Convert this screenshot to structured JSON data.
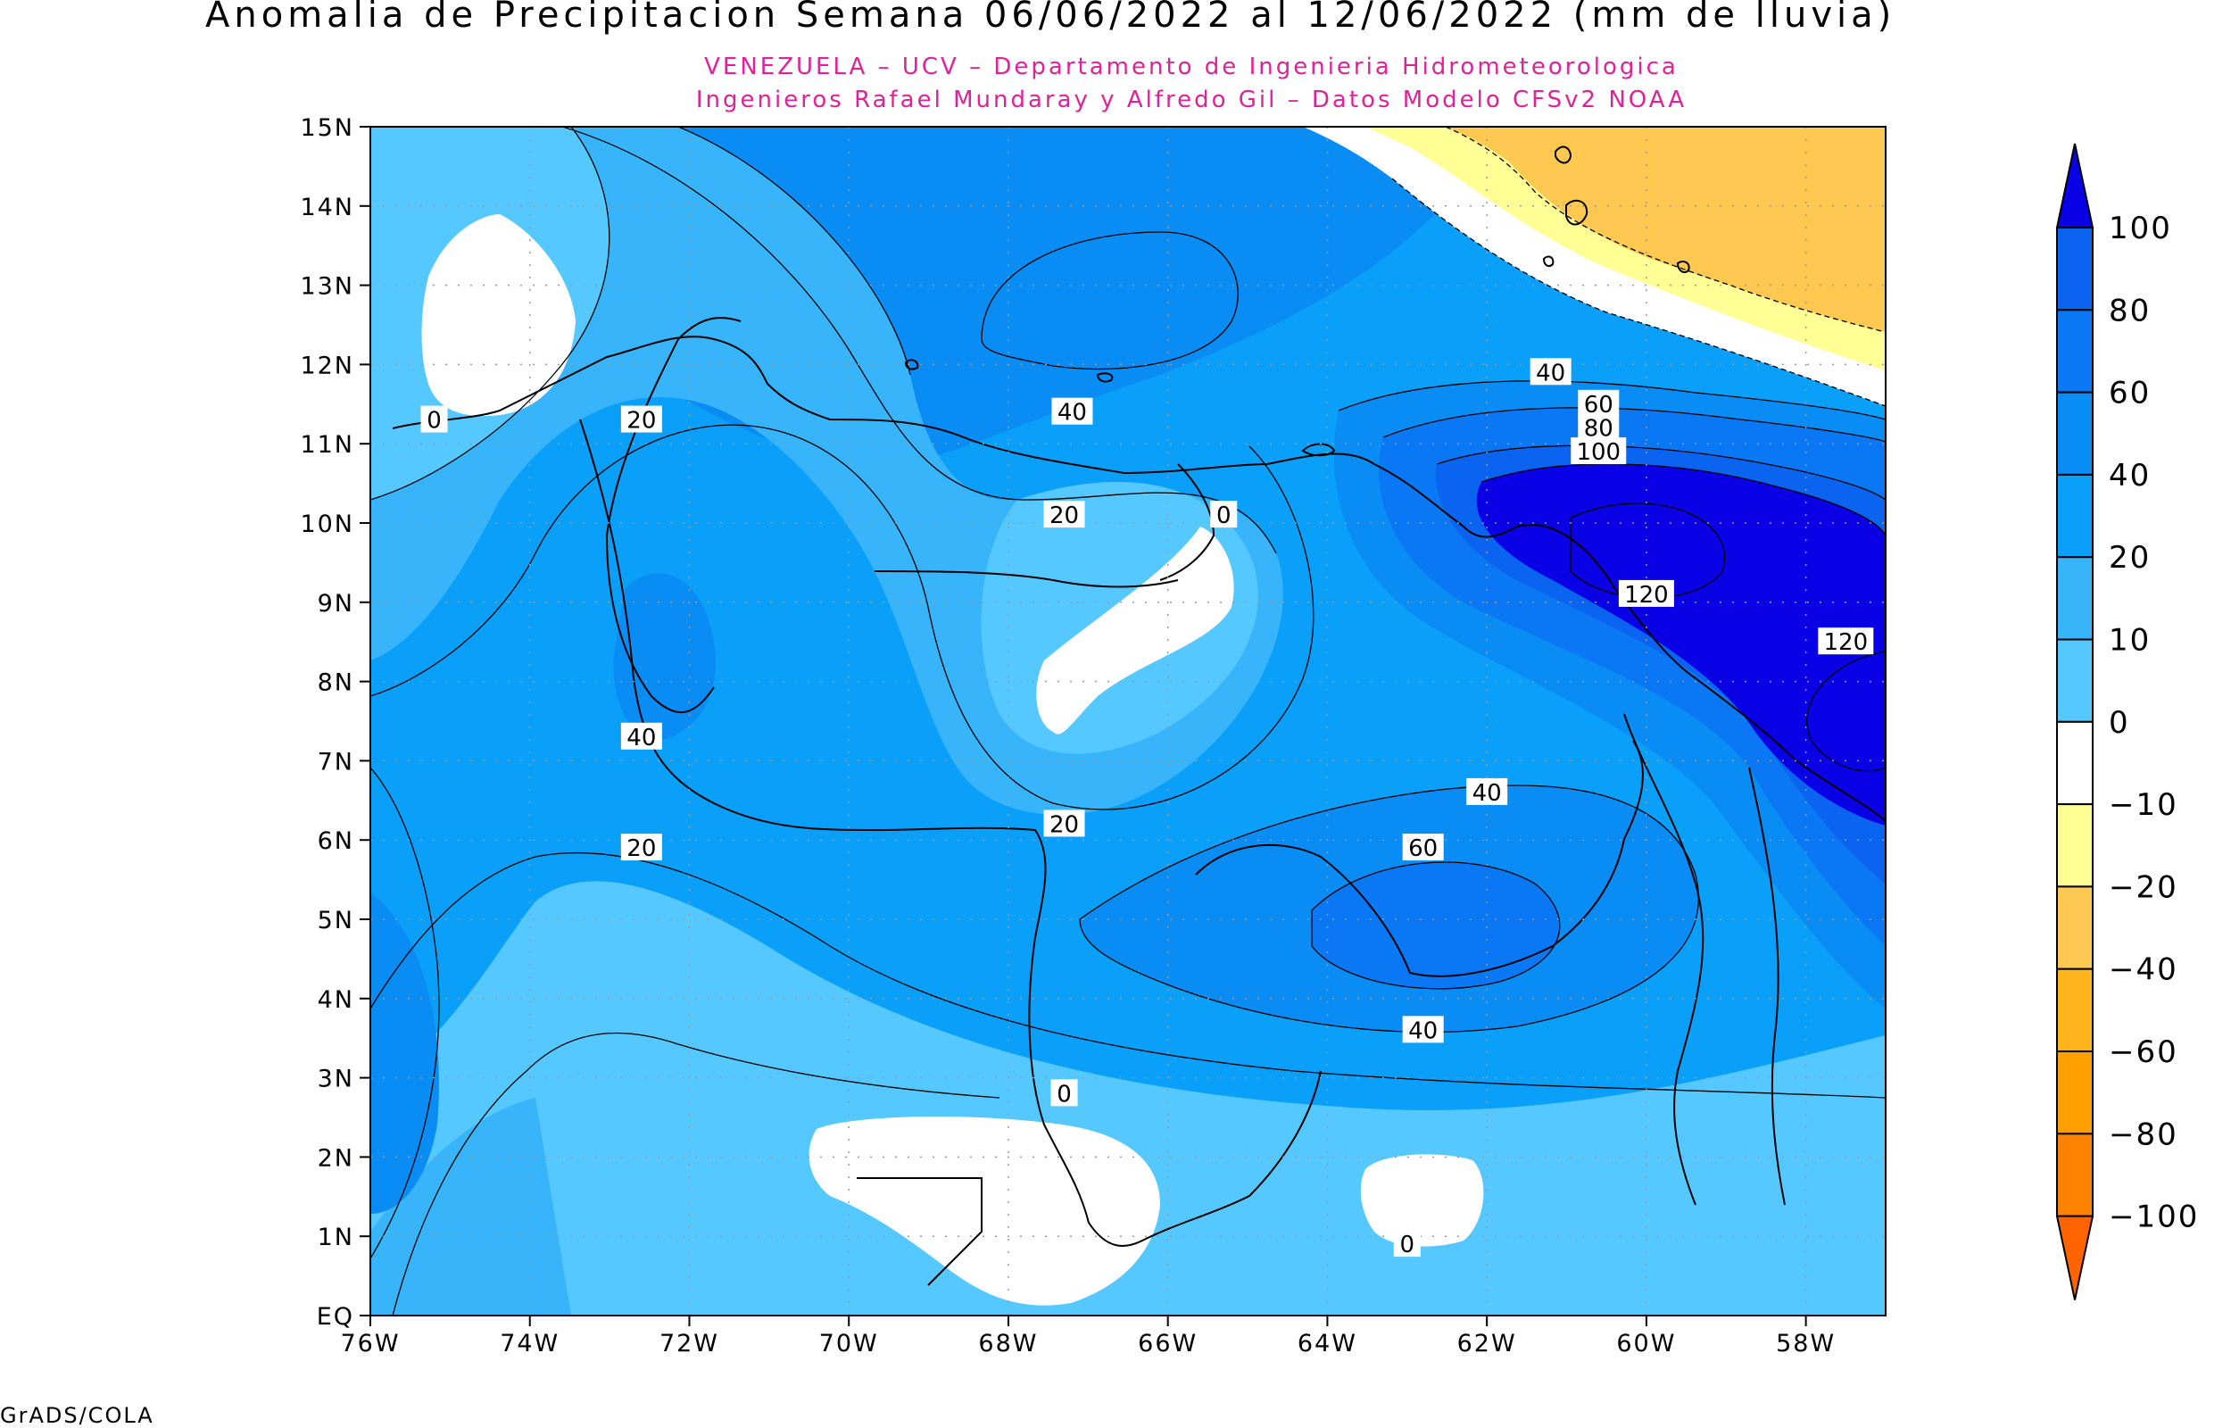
{
  "title": "Anomalia de Precipitacion Semana 06/06/2022 al 12/06/2022 (mm de lluvia)",
  "subtitle_line1": "VENEZUELA – UCV – Departamento de Ingenieria Hidrometeorologica",
  "subtitle_line2": "Ingenieros Rafael Mundaray y Alfredo Gil – Datos Modelo CFSv2 NOAA",
  "footer": "GrADS/COLA",
  "axes": {
    "lat_ticks": [
      "15N",
      "14N",
      "13N",
      "12N",
      "11N",
      "10N",
      "9N",
      "8N",
      "7N",
      "6N",
      "5N",
      "4N",
      "3N",
      "2N",
      "1N",
      "EQ"
    ],
    "lon_ticks": [
      "76W",
      "74W",
      "72W",
      "70W",
      "68W",
      "66W",
      "64W",
      "62W",
      "60W",
      "58W"
    ]
  },
  "colorbar": {
    "labels": [
      "100",
      "80",
      "60",
      "40",
      "20",
      "10",
      "0",
      "−10",
      "−20",
      "−40",
      "−60",
      "−80",
      "−100"
    ],
    "colors": [
      "#0a00e6",
      "#0a64f0",
      "#0a78f5",
      "#0a8cf5",
      "#0aa0fa",
      "#37b4fa",
      "#55c8ff",
      "#ffffff",
      "#ffff96",
      "#ffc850",
      "#ffb41e",
      "#ffa000",
      "#ff8200",
      "#ff6400"
    ]
  },
  "contour_labels": [
    {
      "text": "0",
      "lon": -75.2,
      "lat": 11.3
    },
    {
      "text": "20",
      "lon": -72.6,
      "lat": 11.3
    },
    {
      "text": "40",
      "lon": -67.2,
      "lat": 11.4
    },
    {
      "text": "20",
      "lon": -67.3,
      "lat": 10.1
    },
    {
      "text": "0",
      "lon": -65.3,
      "lat": 10.1
    },
    {
      "text": "40",
      "lon": -72.6,
      "lat": 7.3
    },
    {
      "text": "20",
      "lon": -72.6,
      "lat": 5.9
    },
    {
      "text": "20",
      "lon": -67.3,
      "lat": 6.2
    },
    {
      "text": "40",
      "lon": -61.2,
      "lat": 11.9
    },
    {
      "text": "60",
      "lon": -60.6,
      "lat": 11.5
    },
    {
      "text": "80",
      "lon": -60.6,
      "lat": 11.2
    },
    {
      "text": "100",
      "lon": -60.6,
      "lat": 10.9
    },
    {
      "text": "120",
      "lon": -60.0,
      "lat": 9.1
    },
    {
      "text": "120",
      "lon": -57.5,
      "lat": 8.5
    },
    {
      "text": "40",
      "lon": -62.0,
      "lat": 6.6
    },
    {
      "text": "60",
      "lon": -62.8,
      "lat": 5.9
    },
    {
      "text": "40",
      "lon": -62.8,
      "lat": 3.6
    },
    {
      "text": "0",
      "lon": -67.3,
      "lat": 2.8
    },
    {
      "text": "0",
      "lon": -63.0,
      "lat": 0.9
    }
  ]
}
